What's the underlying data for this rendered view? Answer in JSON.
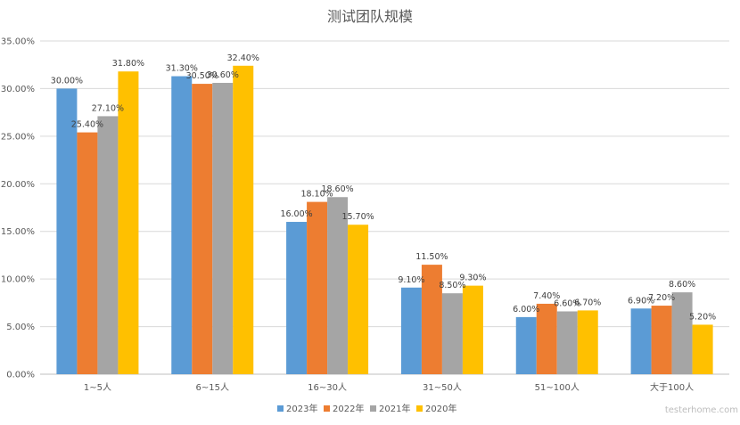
{
  "chart_data": {
    "type": "bar",
    "title": "测试团队规模",
    "categories": [
      "1~5人",
      "6~15人",
      "16~30人",
      "31~50人",
      "51~100人",
      "大于100人"
    ],
    "series": [
      {
        "name": "2023年",
        "color": "#5b9bd5",
        "values": [
          30.0,
          31.3,
          16.0,
          9.1,
          6.0,
          6.9
        ]
      },
      {
        "name": "2022年",
        "color": "#ed7d31",
        "values": [
          25.4,
          30.5,
          18.1,
          11.5,
          7.4,
          7.2
        ]
      },
      {
        "name": "2021年",
        "color": "#a5a5a5",
        "values": [
          27.1,
          30.6,
          18.6,
          8.5,
          6.6,
          8.6
        ]
      },
      {
        "name": "2020年",
        "color": "#ffc000",
        "values": [
          31.8,
          32.4,
          15.7,
          9.3,
          6.7,
          5.2
        ]
      }
    ],
    "ylim": [
      0,
      35
    ],
    "yticks": [
      "0.00%",
      "5.00%",
      "10.00%",
      "15.00%",
      "20.00%",
      "25.00%",
      "30.00%",
      "35.00%"
    ],
    "data_labels": true,
    "grid": true,
    "legend_position": "bottom"
  },
  "watermark": "testerhome.com"
}
